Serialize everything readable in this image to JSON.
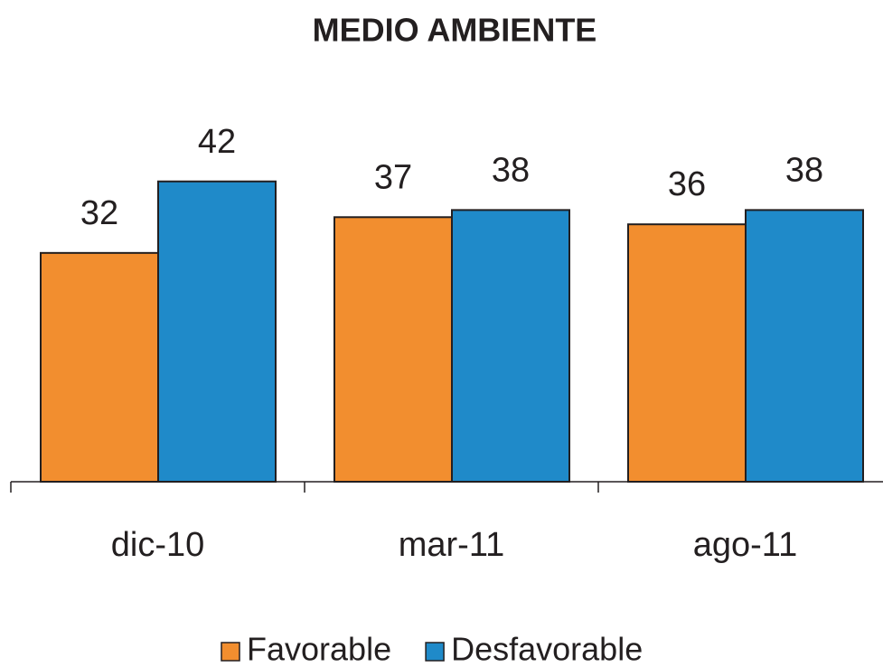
{
  "chart_data": {
    "type": "bar",
    "title": "MEDIO AMBIENTE",
    "categories": [
      "dic-10",
      "mar-11",
      "ago-11"
    ],
    "series": [
      {
        "name": "Favorable",
        "color": "#f28e2f",
        "values": [
          32,
          37,
          36
        ]
      },
      {
        "name": "Desfavorable",
        "color": "#1f8ac9",
        "values": [
          42,
          38,
          38
        ]
      }
    ],
    "ylim": [
      0,
      45
    ],
    "legend": "bottom"
  }
}
